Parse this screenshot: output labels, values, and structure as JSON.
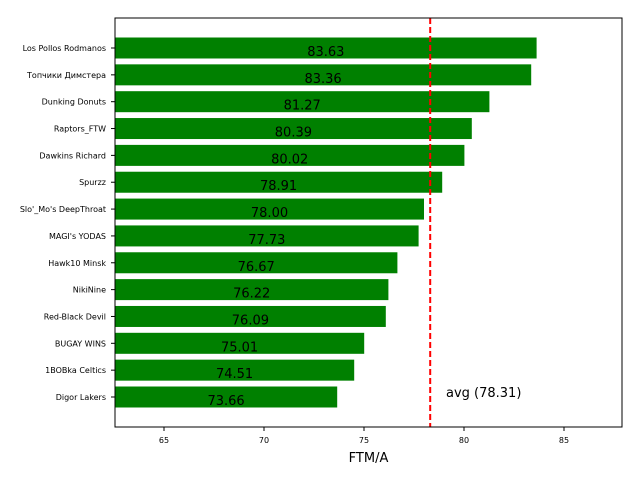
{
  "chart_data": {
    "type": "bar",
    "orientation": "horizontal",
    "title": "",
    "xlabel": "FTM/A",
    "ylabel": "",
    "xlim": [
      62.55,
      87.9
    ],
    "xticks": [
      65,
      70,
      75,
      80,
      85
    ],
    "grid": false,
    "bar_color": "#008000",
    "categories": [
      "Los Pollos Rodmanos",
      "Топчики Димстера",
      "Dunking Donuts",
      "Raptors_FTW",
      "Dawkins Richard",
      "Spurzz",
      "Slo'_Mo's DeepThroat",
      "MAGI's YODAS",
      "Hawk10 Minsk",
      "NikiNine",
      "Red-Black Devil",
      "BUGAY WINS",
      "1BOBka Celtics",
      "Digor Lakers"
    ],
    "values": [
      83.63,
      83.36,
      81.27,
      80.39,
      80.02,
      78.91,
      78.0,
      77.73,
      76.67,
      76.22,
      76.09,
      75.01,
      74.51,
      73.66
    ],
    "value_labels": [
      "83.63",
      "83.36",
      "81.27",
      "80.39",
      "80.02",
      "78.91",
      "78.00",
      "77.73",
      "76.67",
      "76.22",
      "76.09",
      "75.01",
      "74.51",
      "73.66"
    ],
    "average": {
      "value": 78.31,
      "label": "avg (78.31)",
      "color": "#ff0000",
      "style": "dashed"
    }
  }
}
